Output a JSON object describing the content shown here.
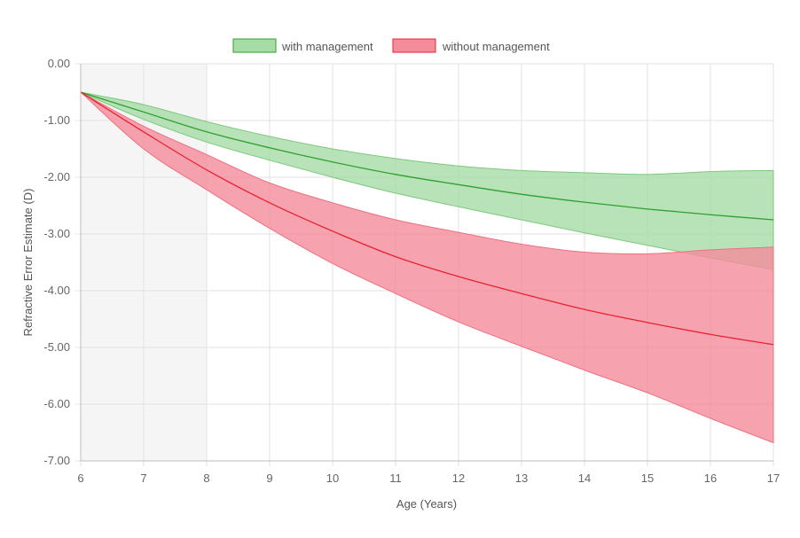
{
  "chart_data": {
    "type": "line",
    "xlabel": "Age (Years)",
    "ylabel": "Refractive Error Estimate (D)",
    "xlim": [
      6,
      17
    ],
    "ylim": [
      -7,
      0
    ],
    "x_ticks": [
      6,
      7,
      8,
      9,
      10,
      11,
      12,
      13,
      14,
      15,
      16,
      17
    ],
    "y_ticks": [
      "0.00",
      "-1.00",
      "-2.00",
      "-3.00",
      "-4.00",
      "-5.00",
      "-6.00",
      "-7.00"
    ],
    "y_tick_values": [
      0,
      -1,
      -2,
      -3,
      -4,
      -5,
      -6,
      -7
    ],
    "grid": true,
    "legend_position": "top",
    "shaded_region": {
      "x_start": 6,
      "x_end": 8,
      "color": "#f5f5f5"
    },
    "x": [
      6,
      7,
      8,
      9,
      10,
      11,
      12,
      13,
      14,
      15,
      16,
      17
    ],
    "series": [
      {
        "name": "with management",
        "line_color": "#2ea02e",
        "fill_color": "#a6dca6",
        "fill_border": "#7cc97c",
        "mean": [
          -0.5,
          -0.85,
          -1.2,
          -1.48,
          -1.73,
          -1.95,
          -2.13,
          -2.3,
          -2.44,
          -2.56,
          -2.66,
          -2.75
        ],
        "upper": [
          -0.5,
          -0.72,
          -1.02,
          -1.28,
          -1.5,
          -1.67,
          -1.8,
          -1.88,
          -1.92,
          -1.95,
          -1.9,
          -1.88
        ],
        "lower": [
          -0.5,
          -0.98,
          -1.38,
          -1.7,
          -2.0,
          -2.28,
          -2.52,
          -2.75,
          -2.98,
          -3.2,
          -3.42,
          -3.63
        ]
      },
      {
        "name": "without management",
        "line_color": "#e8222f",
        "fill_color": "#f48c9b",
        "fill_border": "#ef7080",
        "mean": [
          -0.5,
          -1.2,
          -1.87,
          -2.45,
          -2.95,
          -3.4,
          -3.75,
          -4.05,
          -4.33,
          -4.56,
          -4.77,
          -4.95
        ],
        "upper": [
          -0.5,
          -1.1,
          -1.6,
          -2.1,
          -2.45,
          -2.75,
          -2.97,
          -3.18,
          -3.32,
          -3.35,
          -3.28,
          -3.23
        ],
        "lower": [
          -0.5,
          -1.5,
          -2.22,
          -2.9,
          -3.52,
          -4.05,
          -4.55,
          -4.98,
          -5.4,
          -5.8,
          -6.25,
          -6.68
        ]
      }
    ]
  }
}
